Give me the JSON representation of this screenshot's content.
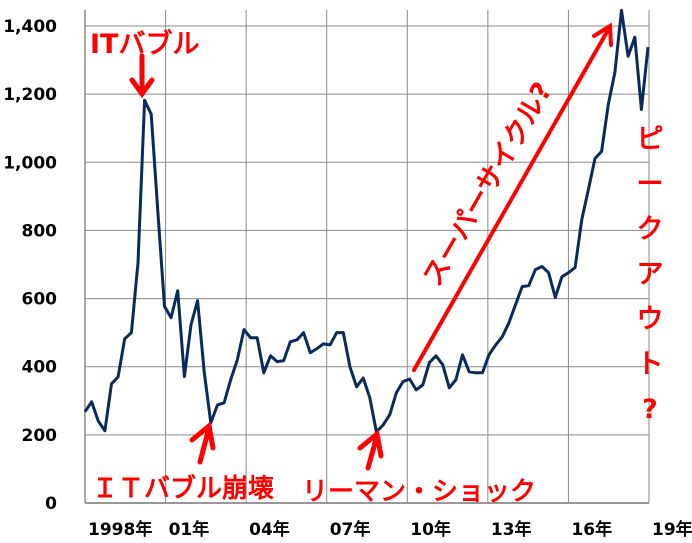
{
  "chart_data": {
    "type": "line",
    "title": "",
    "xlabel": "",
    "ylabel": "",
    "ylim": [
      0,
      1400
    ],
    "yticks": [
      "0",
      "200",
      "400",
      "600",
      "800",
      "1,000",
      "1,200",
      "1,400"
    ],
    "xticks": [
      "1998年",
      "01年",
      "04年",
      "07年",
      "10年",
      "13年",
      "16年",
      "19年"
    ],
    "grid": true,
    "line_color": "#0a2a5e",
    "annotation_color": "#ff0000",
    "series": [
      {
        "values": [
          268,
          297,
          241,
          212,
          350,
          370,
          482,
          500,
          705,
          1182,
          1141,
          853,
          577,
          544,
          623,
          371,
          523,
          594,
          385,
          235,
          288,
          294,
          362,
          420,
          509,
          485,
          485,
          382,
          432,
          415,
          418,
          473,
          479,
          500,
          441,
          453,
          467,
          464,
          500,
          500,
          400,
          341,
          367,
          309,
          209,
          229,
          259,
          323,
          356,
          364,
          332,
          347,
          412,
          432,
          406,
          338,
          362,
          435,
          385,
          382,
          382,
          435,
          464,
          488,
          529,
          582,
          635,
          638,
          685,
          694,
          676,
          603,
          664,
          676,
          691,
          832,
          920,
          1011,
          1032,
          1170,
          1264,
          1446,
          1311,
          1367,
          1155,
          1338
        ]
      }
    ],
    "annotations": {
      "it_bubble": "ITバブル",
      "it_bubble_burst": "ＩＴバブル崩壊",
      "lehman_shock": "リーマン・ショック",
      "super_cycle": "スーパーサイクル?",
      "peak_out": [
        "ピ",
        "ー",
        "ク",
        "ア",
        "ウ",
        "ト",
        "?"
      ]
    }
  }
}
